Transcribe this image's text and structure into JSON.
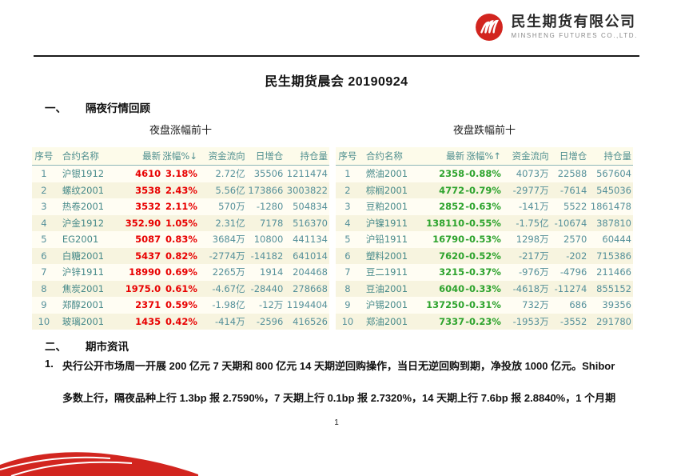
{
  "header": {
    "company_name": "民生期货有限公司",
    "company_name_en": "MINSHENG FUTURES CO.,LTD.",
    "brand_red": "#d2251f"
  },
  "document": {
    "title": "民生期货晨会 20190924",
    "page_number": "1"
  },
  "sections": {
    "one_index": "一、",
    "one_title": "隔夜行情回顾",
    "two_index": "二、",
    "two_title": "期市资讯"
  },
  "gainers_table": {
    "subtitle": "夜盘涨幅前十",
    "headers": [
      "序号",
      "合约名称",
      "最新",
      "涨幅%↓",
      "资金流向",
      "日增仓",
      "持仓量"
    ],
    "value_color": "#e80000",
    "rows": [
      [
        "1",
        "沪银1912",
        "4610",
        "3.18%",
        "2.72亿",
        "35506",
        "1211474"
      ],
      [
        "2",
        "螺纹2001",
        "3538",
        "2.43%",
        "5.56亿",
        "173866",
        "3003822"
      ],
      [
        "3",
        "热卷2001",
        "3532",
        "2.11%",
        "570万",
        "-1280",
        "504834"
      ],
      [
        "4",
        "沪金1912",
        "352.90",
        "1.05%",
        "2.31亿",
        "7178",
        "516370"
      ],
      [
        "5",
        "EG2001",
        "5087",
        "0.83%",
        "3684万",
        "10800",
        "441134"
      ],
      [
        "6",
        "白糖2001",
        "5437",
        "0.82%",
        "-2774万",
        "-14182",
        "641014"
      ],
      [
        "7",
        "沪锌1911",
        "18990",
        "0.69%",
        "2265万",
        "1914",
        "204468"
      ],
      [
        "8",
        "焦炭2001",
        "1975.0",
        "0.61%",
        "-4.67亿",
        "-28440",
        "278668"
      ],
      [
        "9",
        "郑醇2001",
        "2371",
        "0.59%",
        "-1.98亿",
        "-12万",
        "1194404"
      ],
      [
        "10",
        "玻璃2001",
        "1435",
        "0.42%",
        "-414万",
        "-2596",
        "416526"
      ]
    ]
  },
  "losers_table": {
    "subtitle": "夜盘跌幅前十",
    "headers": [
      "序号",
      "合约名称",
      "最新",
      "涨幅%↑",
      "资金流向",
      "日增仓",
      "持仓量"
    ],
    "value_color": "#2da32d",
    "rows": [
      [
        "1",
        "燃油2001",
        "2358",
        "-0.88%",
        "4073万",
        "22588",
        "567604"
      ],
      [
        "2",
        "棕榈2001",
        "4772",
        "-0.79%",
        "-2977万",
        "-7614",
        "545036"
      ],
      [
        "3",
        "豆粕2001",
        "2852",
        "-0.63%",
        "-141万",
        "5522",
        "1861478"
      ],
      [
        "4",
        "沪镍1911",
        "138110",
        "-0.55%",
        "-1.75亿",
        "-10674",
        "387810"
      ],
      [
        "5",
        "沪铅1911",
        "16790",
        "-0.53%",
        "1298万",
        "2570",
        "60444"
      ],
      [
        "6",
        "塑料2001",
        "7620",
        "-0.52%",
        "-217万",
        "-202",
        "715386"
      ],
      [
        "7",
        "豆二1911",
        "3215",
        "-0.37%",
        "-976万",
        "-4796",
        "211466"
      ],
      [
        "8",
        "豆油2001",
        "6040",
        "-0.33%",
        "-4618万",
        "-11274",
        "855152"
      ],
      [
        "9",
        "沪锡2001",
        "137250",
        "-0.31%",
        "732万",
        "686",
        "39356"
      ],
      [
        "10",
        "郑油2001",
        "7337",
        "-0.23%",
        "-1953万",
        "-3552",
        "291780"
      ]
    ]
  },
  "news": {
    "item_no": "1.",
    "line1": "央行公开市场周一开展 200 亿元 7 天期和 800 亿元 14 天期逆回购操作，当日无逆回购到期，净投放 1000 亿元。Shibor",
    "line2": "多数上行，隔夜品种上行 1.3bp 报 2.7590%，7 天期上行 0.1bp 报 2.7320%，14 天期上行 7.6bp 报 2.8840%，1 个月期"
  }
}
